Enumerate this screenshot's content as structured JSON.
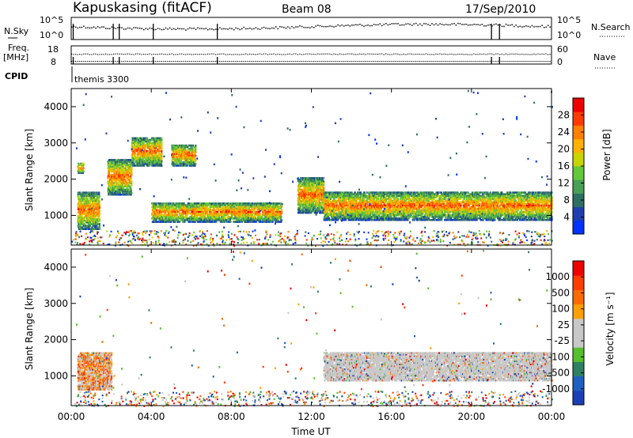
{
  "header": {
    "station": "Kapuskasing (fitACF)",
    "beam": "Beam 08",
    "date": "17/Sep/2010"
  },
  "strip_labels": {
    "nsky": "N.Sky",
    "nsearch": "N.Search",
    "freq_line1": "Freq.",
    "freq_line2": "[MHz]",
    "nave": "Nave",
    "cpid": "CPID",
    "cpid_name": "themis 3300",
    "left_top_ticks": [
      "10^5",
      "10^0"
    ],
    "right_top_ticks": [
      "10^5",
      "10^0"
    ],
    "freq_ticks": [
      "18",
      "8"
    ],
    "nave_ticks": [
      "60",
      "0"
    ]
  },
  "colors": {
    "power": [
      "#0033ff",
      "#1f3fb0",
      "#2e6f63",
      "#4a9f56",
      "#63c83a",
      "#c8d400",
      "#ffb000",
      "#ff7f00",
      "#ff3b00",
      "#ee0000"
    ],
    "velocity": [
      "#1a3fb8",
      "#1f5fbf",
      "#2f7f63",
      "#56bf2c",
      "#c8c8c8",
      "#c8c8c8",
      "#ffa000",
      "#ff6a00",
      "#ff3d00",
      "#ee0000"
    ]
  },
  "chart_data": [
    {
      "type": "heatmap",
      "title": "Power",
      "xlabel": "",
      "ylabel": "Slant Range [km]",
      "xlim": [
        "00:00",
        "24:00"
      ],
      "ylim": [
        180,
        4500
      ],
      "y_ticks": [
        "1000",
        "2000",
        "3000",
        "4000"
      ],
      "colorbar": {
        "label": "Power [dB]",
        "ticks": [
          "4",
          "8",
          "12",
          "16",
          "20",
          "24",
          "28"
        ],
        "range": [
          0,
          32
        ]
      },
      "backscatter_regions": [
        {
          "t_start": 0.3,
          "t_end": 1.4,
          "range_min": 650,
          "range_max": 1700
        },
        {
          "t_start": 0.3,
          "t_end": 0.6,
          "range_min": 2200,
          "range_max": 2500
        },
        {
          "t_start": 1.8,
          "t_end": 3.0,
          "range_min": 1600,
          "range_max": 2600
        },
        {
          "t_start": 3.0,
          "t_end": 4.5,
          "range_min": 2400,
          "range_max": 3200
        },
        {
          "t_start": 5.0,
          "t_end": 6.2,
          "range_min": 2400,
          "range_max": 3000
        },
        {
          "t_start": 4.0,
          "t_end": 10.5,
          "range_min": 850,
          "range_max": 1400
        },
        {
          "t_start": 11.3,
          "t_end": 12.6,
          "range_min": 1100,
          "range_max": 2100
        },
        {
          "t_start": 12.6,
          "t_end": 24.0,
          "range_min": 900,
          "range_max": 1700
        }
      ]
    },
    {
      "type": "heatmap",
      "title": "Velocity",
      "xlabel": "Time UT",
      "ylabel": "Slant Range [km]",
      "xlim": [
        "00:00",
        "24:00"
      ],
      "ylim": [
        180,
        4500
      ],
      "x_ticks": [
        "00:00",
        "04:00",
        "08:00",
        "12:00",
        "16:00",
        "20:00",
        "00:00"
      ],
      "y_ticks": [
        "1000",
        "2000",
        "3000",
        "4000"
      ],
      "colorbar": {
        "label": "Velocity [m s⁻¹]",
        "ticks": [
          "1000",
          "500",
          "100",
          "25",
          "-25",
          "-100",
          "-500",
          "-1000"
        ]
      },
      "dominant_velocity_class": "-25 to 25 (ground scatter)",
      "backscatter_regions": [
        {
          "t_start": 0.3,
          "t_end": 2.0,
          "range_min": 650,
          "range_max": 1700
        },
        {
          "t_start": 12.6,
          "t_end": 24.0,
          "range_min": 900,
          "range_max": 1700
        }
      ]
    }
  ]
}
